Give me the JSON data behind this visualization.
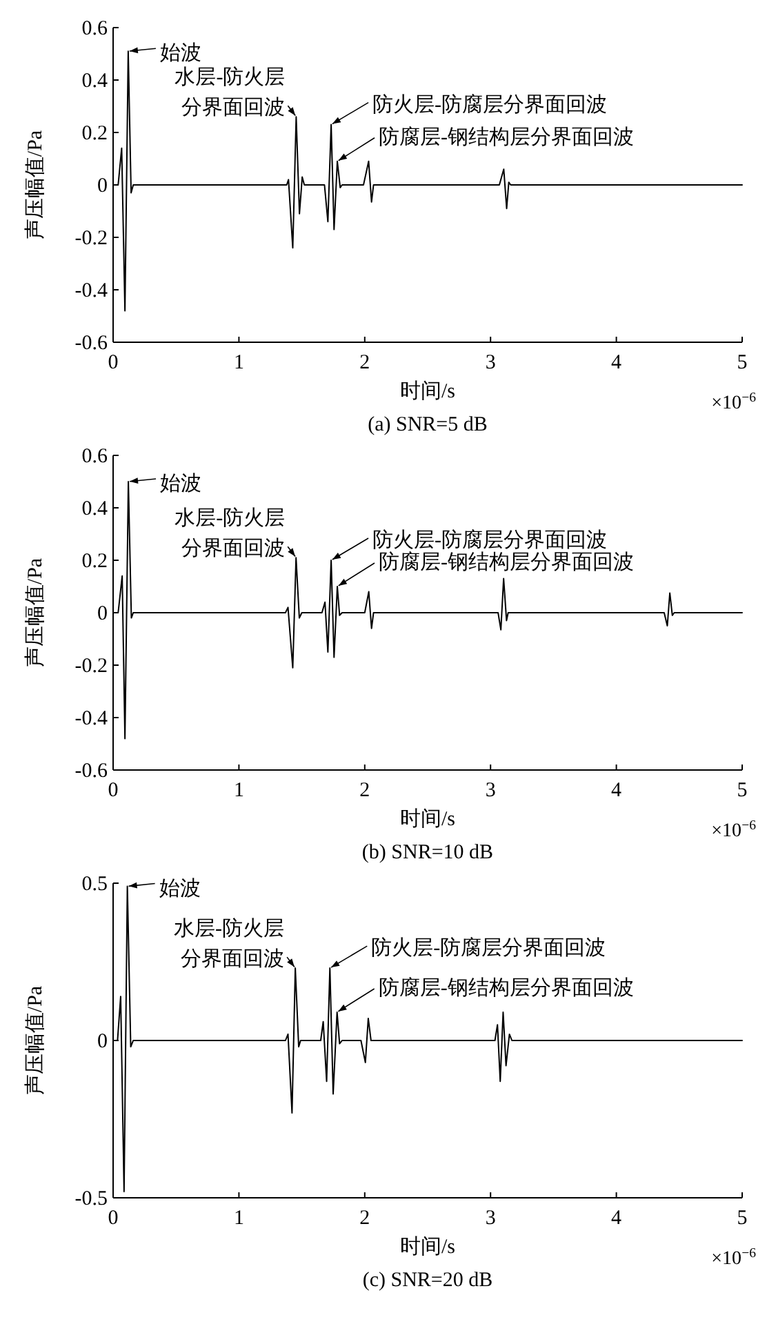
{
  "chart_data": [
    {
      "type": "line",
      "title": "(a) SNR=5 dB",
      "xlabel": "时间/s",
      "ylabel": "声压幅值/Pa",
      "xlim": [
        0,
        5
      ],
      "xticks": [
        0,
        1,
        2,
        3,
        4,
        5
      ],
      "ylim": [
        -0.6,
        0.6
      ],
      "yticks": [
        -0.6,
        -0.4,
        -0.2,
        0,
        0.2,
        0.4,
        0.6
      ],
      "grid": false,
      "marker": "none",
      "line_style": "solid",
      "series": [
        {
          "color": "#000000",
          "x": [
            0,
            0.04,
            0.068,
            0.094,
            0.12,
            0.143,
            0.16,
            1.38,
            1.394,
            1.428,
            1.455,
            1.481,
            1.503,
            1.52,
            1.68,
            1.707,
            1.733,
            1.756,
            1.782,
            1.805,
            1.82,
            1.99,
            2.031,
            2.054,
            2.07,
            3.07,
            3.105,
            3.128,
            3.145,
            3.16,
            5
          ],
          "values": [
            0,
            0,
            0.14,
            -0.48,
            0.51,
            -0.03,
            0,
            0,
            0.02,
            -0.24,
            0.26,
            -0.11,
            0.03,
            0,
            0,
            -0.14,
            0.23,
            -0.17,
            0.09,
            -0.01,
            0,
            0,
            0.09,
            -0.065,
            0,
            0,
            0.06,
            -0.09,
            0.01,
            0,
            0
          ]
        }
      ],
      "annotations": [
        {
          "text": "始波",
          "x": 0.12,
          "y": 0.51
        },
        {
          "text": "水层-防火层分界面回波",
          "x": 1.455,
          "y": 0.26
        },
        {
          "text": "防火层-防腐层分界面回波",
          "x": 1.733,
          "y": 0.23
        },
        {
          "text": "防腐层-钢结构层分界面回波",
          "x": 1.782,
          "y": 0.09
        },
        "×10$^{−6}$"
      ]
    },
    {
      "type": "line",
      "title": "(b) SNR=10 dB",
      "xlabel": "时间/s",
      "ylabel": "声压幅值/Pa",
      "xlim": [
        0,
        5
      ],
      "xticks": [
        0,
        1,
        2,
        3,
        4,
        5
      ],
      "ylim": [
        -0.6,
        0.6
      ],
      "yticks": [
        -0.6,
        -0.4,
        -0.2,
        0,
        0.2,
        0.4,
        0.6
      ],
      "grid": false,
      "marker": "none",
      "line_style": "solid",
      "series": [
        {
          "color": "#000000",
          "x": [
            0,
            0.04,
            0.072,
            0.094,
            0.121,
            0.145,
            0.16,
            1.37,
            1.39,
            1.428,
            1.454,
            1.48,
            1.5,
            1.66,
            1.684,
            1.707,
            1.733,
            1.756,
            1.782,
            1.8,
            1.82,
            2.0,
            2.032,
            2.054,
            2.07,
            3.06,
            3.082,
            3.104,
            3.127,
            3.14,
            4.38,
            4.405,
            4.425,
            4.445,
            4.46,
            5
          ],
          "values": [
            0,
            0,
            0.14,
            -0.48,
            0.5,
            -0.02,
            0,
            0,
            0.02,
            -0.21,
            0.21,
            -0.02,
            0,
            0,
            0.04,
            -0.15,
            0.2,
            -0.17,
            0.1,
            -0.01,
            0,
            0,
            0.08,
            -0.06,
            0,
            0,
            -0.065,
            0.13,
            -0.03,
            0,
            0,
            -0.05,
            0.075,
            -0.01,
            0,
            0
          ]
        }
      ],
      "annotations": [
        {
          "text": "始波",
          "x": 0.121,
          "y": 0.5
        },
        {
          "text": "水层-防火层分界面回波",
          "x": 1.454,
          "y": 0.21
        },
        {
          "text": "防火层-防腐层分界面回波",
          "x": 1.733,
          "y": 0.2
        },
        {
          "text": "防腐层-钢结构层分界面回波",
          "x": 1.782,
          "y": 0.1
        },
        "×10$^{−6}$"
      ]
    },
    {
      "type": "line",
      "title": "(c) SNR=20 dB",
      "xlabel": "时间/s",
      "ylabel": "声压幅值/Pa",
      "xlim": [
        0,
        5
      ],
      "xticks": [
        0,
        1,
        2,
        3,
        4,
        5
      ],
      "ylim": [
        -0.5,
        0.5
      ],
      "yticks": [
        -0.5,
        0,
        0.5
      ],
      "grid": false,
      "marker": "none",
      "line_style": "solid",
      "series": [
        {
          "color": "#000000",
          "x": [
            0,
            0.035,
            0.06,
            0.087,
            0.113,
            0.14,
            0.16,
            1.37,
            1.39,
            1.422,
            1.448,
            1.475,
            1.49,
            1.65,
            1.67,
            1.697,
            1.723,
            1.749,
            1.78,
            1.8,
            1.82,
            1.97,
            2.005,
            2.028,
            2.05,
            3.035,
            3.055,
            3.077,
            3.1,
            3.123,
            3.15,
            3.17,
            5
          ],
          "values": [
            0,
            0,
            0.14,
            -0.48,
            0.49,
            -0.02,
            0,
            0,
            0.02,
            -0.23,
            0.23,
            -0.02,
            0,
            0,
            0.06,
            -0.13,
            0.23,
            -0.17,
            0.09,
            -0.01,
            0,
            0,
            -0.07,
            0.07,
            0,
            0,
            0.05,
            -0.13,
            0.09,
            -0.08,
            0.02,
            0,
            0
          ]
        }
      ],
      "annotations": [
        {
          "text": "始波",
          "x": 0.113,
          "y": 0.49
        },
        {
          "text": "水层-防火层分界面回波",
          "x": 1.448,
          "y": 0.23
        },
        {
          "text": "防火层-防腐层分界面回波",
          "x": 1.723,
          "y": 0.23
        },
        {
          "text": "防腐层-钢结构层分界面回波",
          "x": 1.78,
          "y": 0.09
        },
        "×10$^{−6}$"
      ]
    }
  ]
}
